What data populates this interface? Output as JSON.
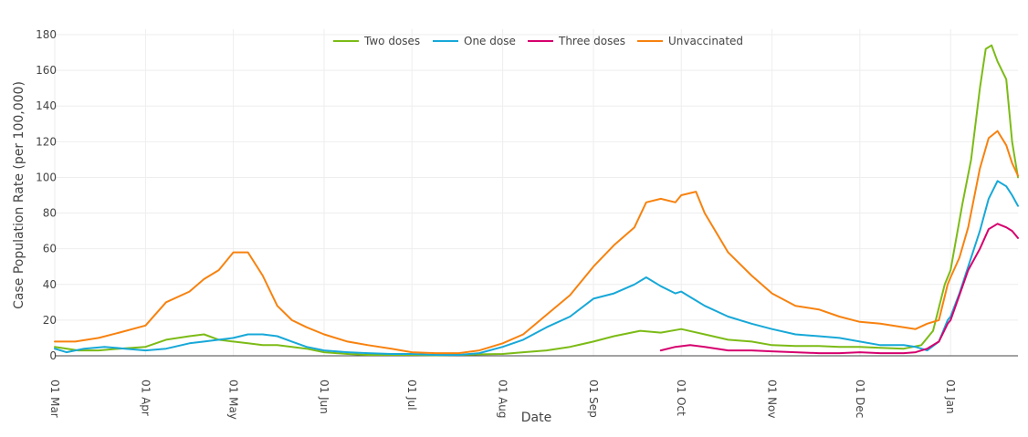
{
  "chart_data": {
    "type": "line",
    "title": "",
    "xlabel": "Date",
    "ylabel": "Case Population Rate (per 100,000)",
    "ylim": [
      0,
      180
    ],
    "yticks": [
      0,
      20,
      40,
      60,
      80,
      100,
      120,
      140,
      160,
      180
    ],
    "x_axis": {
      "type": "date",
      "range": [
        "01 Mar",
        "24 Jan"
      ],
      "tick_labels": [
        "01 Mar",
        "01 Apr",
        "01 May",
        "01 Jun",
        "01 Jul",
        "01 Aug",
        "01 Sep",
        "01 Oct",
        "01 Nov",
        "01 Dec",
        "01 Jan"
      ],
      "tick_day_index": [
        0,
        31,
        61,
        92,
        122,
        153,
        184,
        214,
        245,
        275,
        306
      ]
    },
    "grid": true,
    "legend_position": "top-center",
    "series": [
      {
        "name": "Two doses",
        "color": "#7cbb16",
        "x": [
          0,
          8,
          15,
          22,
          31,
          38,
          46,
          51,
          56,
          61,
          66,
          71,
          76,
          81,
          86,
          92,
          100,
          107,
          115,
          122,
          130,
          138,
          145,
          153,
          160,
          168,
          176,
          184,
          191,
          200,
          207,
          214,
          222,
          230,
          238,
          245,
          253,
          261,
          268,
          275,
          282,
          290,
          296,
          300,
          304,
          306,
          310,
          313,
          316,
          318,
          320,
          322,
          325,
          327,
          328,
          329
        ],
        "y": [
          5,
          3,
          3,
          4,
          5,
          9,
          11,
          12,
          9,
          8,
          7,
          6,
          6,
          5,
          4,
          2,
          1,
          0.5,
          0.5,
          0.5,
          0.3,
          0.5,
          0.8,
          1,
          2,
          3,
          5,
          8,
          11,
          14,
          13,
          15,
          12,
          9,
          8,
          6,
          5.5,
          5.5,
          5,
          5,
          4.5,
          4,
          6,
          14,
          40,
          48,
          85,
          110,
          150,
          172,
          174,
          165,
          155,
          120,
          110,
          100
        ]
      },
      {
        "name": "One dose",
        "color": "#17a8d8",
        "x": [
          0,
          4,
          10,
          17,
          24,
          31,
          38,
          46,
          51,
          56,
          61,
          66,
          71,
          76,
          81,
          86,
          92,
          100,
          107,
          115,
          122,
          130,
          138,
          145,
          153,
          160,
          168,
          176,
          184,
          191,
          198,
          202,
          207,
          212,
          214,
          222,
          230,
          238,
          245,
          253,
          261,
          268,
          275,
          282,
          290,
          294,
          298,
          302,
          305,
          306,
          309,
          312,
          316,
          319,
          322,
          325,
          327,
          329
        ],
        "y": [
          4,
          2,
          4,
          5,
          4,
          3,
          4,
          7,
          8,
          9,
          10,
          12,
          12,
          11,
          8,
          5,
          3,
          2,
          1.5,
          1,
          1,
          0.5,
          0.5,
          1.5,
          5,
          9,
          16,
          22,
          32,
          35,
          40,
          44,
          39,
          35,
          36,
          28,
          22,
          18,
          15,
          12,
          11,
          10,
          8,
          6,
          6,
          5,
          3,
          8,
          20,
          22,
          35,
          50,
          70,
          88,
          98,
          95,
          90,
          84
        ]
      },
      {
        "name": "Three doses",
        "color": "#d6006e",
        "x": [
          207,
          212,
          217,
          222,
          230,
          238,
          245,
          253,
          261,
          268,
          275,
          282,
          290,
          294,
          298,
          302,
          305,
          306,
          309,
          312,
          316,
          319,
          322,
          325,
          327,
          329
        ],
        "y": [
          3,
          5,
          6,
          5,
          3,
          3,
          2.5,
          2,
          1.5,
          1.5,
          2,
          1.5,
          1.5,
          2,
          4,
          8,
          18,
          20,
          34,
          48,
          60,
          71,
          74,
          72,
          70,
          66
        ]
      },
      {
        "name": "Unvaccinated",
        "color": "#f7820f",
        "x": [
          0,
          7,
          15,
          22,
          31,
          38,
          46,
          51,
          56,
          61,
          66,
          71,
          76,
          81,
          86,
          92,
          100,
          107,
          115,
          122,
          130,
          138,
          145,
          153,
          160,
          168,
          176,
          184,
          191,
          198,
          202,
          207,
          212,
          214,
          219,
          222,
          230,
          238,
          245,
          253,
          261,
          268,
          275,
          282,
          290,
          294,
          298,
          302,
          305,
          306,
          309,
          312,
          316,
          319,
          322,
          325,
          327,
          329
        ],
        "y": [
          8,
          8,
          10,
          13,
          17,
          30,
          36,
          43,
          48,
          58,
          58,
          45,
          28,
          20,
          16,
          12,
          8,
          6,
          4,
          2,
          1.5,
          1.5,
          3,
          7,
          12,
          23,
          34,
          50,
          62,
          72,
          86,
          88,
          86,
          90,
          92,
          80,
          58,
          45,
          35,
          28,
          26,
          22,
          19,
          18,
          16,
          15,
          18,
          20,
          40,
          44,
          55,
          72,
          105,
          122,
          126,
          118,
          108,
          101
        ]
      }
    ]
  }
}
